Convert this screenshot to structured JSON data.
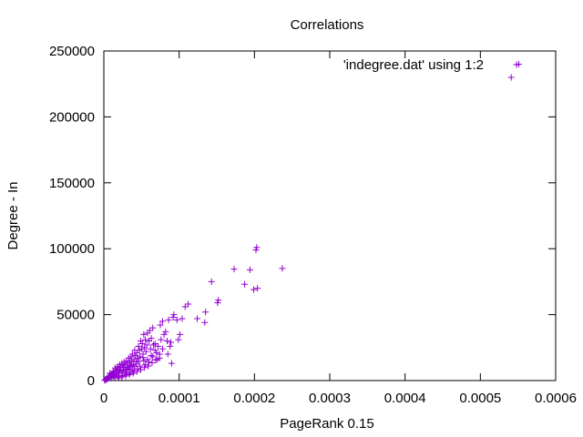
{
  "chart_data": {
    "type": "scatter",
    "title": "Correlations",
    "xlabel": "PageRank 0.15",
    "ylabel": "Degree - In",
    "xlim": [
      0,
      0.0006
    ],
    "ylim": [
      0,
      250000
    ],
    "x_ticks": [
      0,
      0.0001,
      0.0002,
      0.0003,
      0.0004,
      0.0005,
      0.0006
    ],
    "x_tick_labels": [
      "0",
      "0.0001",
      "0.0002",
      "0.0003",
      "0.0004",
      "0.0005",
      "0.0006"
    ],
    "y_ticks": [
      0,
      50000,
      100000,
      150000,
      200000,
      250000
    ],
    "y_tick_labels": [
      "0",
      "50000",
      "100000",
      "150000",
      "200000",
      "250000"
    ],
    "grid": false,
    "legend_position": "top-right",
    "marker": "plus",
    "series": [
      {
        "name": "'indegree.dat' using 1:2",
        "color": "#9400d3",
        "points": [
          [
            0.000551,
            240000
          ],
          [
            0.000541,
            230000
          ],
          [
            0.000237,
            85000
          ],
          [
            0.000203,
            101000
          ],
          [
            0.000202,
            99000
          ],
          [
            0.000204,
            70000
          ],
          [
            0.000199,
            69000
          ],
          [
            0.000194,
            84000
          ],
          [
            0.000187,
            73000
          ],
          [
            0.000173,
            84500
          ],
          [
            0.000152,
            61000
          ],
          [
            0.000151,
            59000
          ],
          [
            0.000143,
            75000
          ],
          [
            0.000135,
            52000
          ],
          [
            0.000134,
            44000
          ],
          [
            0.000124,
            47000
          ],
          [
            0.000112,
            58000
          ],
          [
            0.000108,
            56000
          ],
          [
            0.000104,
            47000
          ],
          [
            0.000101,
            35000
          ],
          [
            9.9e-05,
            31000
          ],
          [
            9.7e-05,
            46000
          ],
          [
            9.3e-05,
            50000
          ],
          [
            9.2e-05,
            48000
          ],
          [
            8.9e-05,
            29000
          ],
          [
            8.8e-05,
            26000
          ],
          [
            8.6e-05,
            46000
          ],
          [
            8.2e-05,
            37000
          ],
          [
            8e-05,
            35000
          ],
          [
            7.8e-05,
            45000
          ],
          [
            7.5e-05,
            42000
          ],
          [
            7.4e-05,
            20000
          ],
          [
            7.2e-05,
            26000
          ],
          [
            7.1e-05,
            16000
          ],
          [
            6.8e-05,
            28000
          ],
          [
            6.6e-05,
            27000
          ],
          [
            6.5e-05,
            40000
          ],
          [
            6.3e-05,
            32000
          ],
          [
            6.2e-05,
            24000
          ],
          [
            6.1e-05,
            38000
          ],
          [
            6e-05,
            30000
          ],
          [
            5.8e-05,
            36000
          ],
          [
            5.7e-05,
            27000
          ],
          [
            5.6e-05,
            22000
          ],
          [
            5.5e-05,
            31000
          ],
          [
            5.4e-05,
            25000
          ],
          [
            5.3e-05,
            35000
          ],
          [
            5.2e-05,
            20000
          ],
          [
            5.1e-05,
            28000
          ],
          [
            5e-05,
            24000
          ],
          [
            4.9e-05,
            30000
          ],
          [
            4.8e-05,
            18000
          ],
          [
            4.7e-05,
            23000
          ],
          [
            4.6e-05,
            26000
          ],
          [
            4.5e-05,
            17000
          ],
          [
            4.4e-05,
            21000
          ],
          [
            4.3e-05,
            14000
          ],
          [
            4.2e-05,
            19000
          ],
          [
            4.1e-05,
            23000
          ],
          [
            4e-05,
            16000
          ],
          [
            3.9e-05,
            12000
          ],
          [
            3.8e-05,
            20000
          ],
          [
            3.7e-05,
            15000
          ],
          [
            3.6e-05,
            18000
          ],
          [
            3.5e-05,
            11000
          ],
          [
            3.4e-05,
            14000
          ],
          [
            3.3e-05,
            17000
          ],
          [
            3.2e-05,
            10000
          ],
          [
            3.1e-05,
            13000
          ],
          [
            3e-05,
            15000
          ],
          [
            2.9e-05,
            9000
          ],
          [
            2.8e-05,
            12000
          ],
          [
            2.7e-05,
            14000
          ],
          [
            2.6e-05,
            8000
          ],
          [
            2.5e-05,
            11000
          ],
          [
            2.4e-05,
            13000
          ],
          [
            2.3e-05,
            7000
          ],
          [
            2.2e-05,
            10000
          ],
          [
            2.1e-05,
            12000
          ],
          [
            2e-05,
            6000
          ],
          [
            1.9e-05,
            9000
          ],
          [
            1.8e-05,
            10500
          ],
          [
            1.7e-05,
            5000
          ],
          [
            1.6e-05,
            8000
          ],
          [
            1.5e-05,
            9500
          ],
          [
            1.4e-05,
            4500
          ],
          [
            1.3e-05,
            7000
          ],
          [
            1.2e-05,
            6000
          ],
          [
            1.1e-05,
            3500
          ],
          [
            1e-05,
            5000
          ],
          [
            9e-06,
            4000
          ],
          [
            8e-06,
            2500
          ],
          [
            7e-06,
            3500
          ],
          [
            6e-06,
            2000
          ],
          [
            5e-06,
            1500
          ],
          [
            4e-06,
            1200
          ],
          [
            3e-06,
            800
          ],
          [
            2e-06,
            500
          ],
          [
            1e-06,
            200
          ],
          [
            4.5e-05,
            9000
          ],
          [
            4e-05,
            7000
          ],
          [
            3.5e-05,
            6000
          ],
          [
            3e-05,
            5000
          ],
          [
            2.5e-05,
            4000
          ],
          [
            2e-05,
            3000
          ],
          [
            1.5e-05,
            2500
          ],
          [
            1e-05,
            1800
          ],
          [
            5.5e-05,
            12000
          ],
          [
            6e-05,
            14000
          ],
          [
            6.5e-05,
            18000
          ],
          [
            7e-05,
            21000
          ],
          [
            5.8e-05,
            16000
          ],
          [
            4.8e-05,
            11000
          ],
          [
            3.8e-05,
            8000
          ],
          [
            2.8e-05,
            6000
          ],
          [
            1.8e-05,
            4000
          ],
          [
            3.3e-05,
            9000
          ],
          [
            4.3e-05,
            12500
          ],
          [
            5.3e-05,
            15000
          ],
          [
            6.3e-05,
            19000
          ],
          [
            6.8e-05,
            23000
          ],
          [
            7.8e-05,
            24000
          ],
          [
            8.5e-05,
            20000
          ],
          [
            9e-05,
            13000
          ],
          [
            7.6e-05,
            31000
          ],
          [
            8.4e-05,
            30000
          ],
          [
            4.6e-05,
            14500
          ],
          [
            5.2e-05,
            17500
          ],
          [
            4.1e-05,
            10500
          ],
          [
            3.6e-05,
            11500
          ],
          [
            3.1e-05,
            8500
          ],
          [
            2.6e-05,
            10000
          ],
          [
            2.1e-05,
            7500
          ],
          [
            1.6e-05,
            6500
          ],
          [
            1.1e-05,
            4500
          ],
          [
            6e-06,
            3000
          ],
          [
            8e-06,
            5500
          ],
          [
            1.3e-05,
            3000
          ],
          [
            1.9e-05,
            2000
          ],
          [
            2.4e-05,
            2800
          ],
          [
            2.9e-05,
            3500
          ],
          [
            3.4e-05,
            4500
          ],
          [
            3.9e-05,
            5500
          ],
          [
            4.4e-05,
            6800
          ],
          [
            4.9e-05,
            8200
          ],
          [
            5.4e-05,
            9800
          ],
          [
            5.9e-05,
            11000
          ],
          [
            6.4e-05,
            13500
          ],
          [
            6.9e-05,
            15500
          ],
          [
            7.4e-05,
            17000
          ]
        ]
      }
    ]
  }
}
